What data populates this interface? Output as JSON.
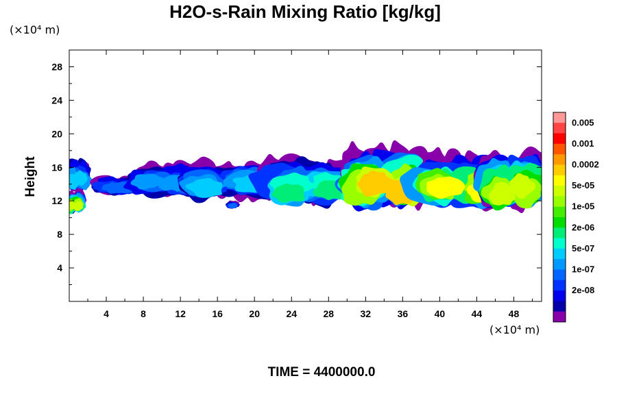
{
  "chart_data": {
    "type": "heatmap",
    "title": "H2O-s-Rain Mixing Ratio [kg/kg]",
    "ylabel": "Height",
    "x_unit_label": "(×10⁴ m)",
    "y_unit_label": "(×10⁴ m)",
    "footer": "TIME = 4400000.0",
    "xlim": [
      0,
      51
    ],
    "ylim": [
      0,
      30
    ],
    "x_ticks": [
      4,
      8,
      12,
      16,
      20,
      24,
      28,
      32,
      36,
      40,
      44,
      48
    ],
    "y_ticks": [
      4,
      8,
      12,
      16,
      20,
      24,
      28
    ],
    "legend": {
      "placement": "right",
      "labels": [
        "0.005",
        "0.001",
        "0.0002",
        "5e-05",
        "1e-05",
        "2e-06",
        "5e-07",
        "1e-07",
        "2e-08"
      ],
      "colors_top_to_bottom": [
        "#ff9999",
        "#ff4444",
        "#ff0000",
        "#ff5500",
        "#ff9900",
        "#ffcc00",
        "#ffff00",
        "#ccff00",
        "#99ff00",
        "#44ee00",
        "#00dd00",
        "#00ee77",
        "#00ffcc",
        "#00ccff",
        "#0099ff",
        "#0066ff",
        "#0033ff",
        "#0000ee",
        "#0000aa",
        "#8800aa"
      ]
    },
    "clouds": [
      {
        "x": [
          0,
          2
        ],
        "y": [
          13.2,
          16.7
        ],
        "level": 6
      },
      {
        "x": [
          0,
          1.3
        ],
        "y": [
          10.5,
          12.8
        ],
        "level": 12
      },
      {
        "x": [
          3.5,
          7.5
        ],
        "y": [
          12.8,
          14.8
        ],
        "level": 4
      },
      {
        "x": [
          7.5,
          13.5
        ],
        "y": [
          12.5,
          16.2
        ],
        "level": 5
      },
      {
        "x": [
          13.5,
          21.5
        ],
        "y": [
          12.2,
          16.4
        ],
        "level": 6
      },
      {
        "x": [
          17.3,
          18
        ],
        "y": [
          11.2,
          11.8
        ],
        "level": 4
      },
      {
        "x": [
          21.5,
          29.5
        ],
        "y": [
          11.5,
          16.6
        ],
        "level": 8
      },
      {
        "x": [
          30.5,
          38
        ],
        "y": [
          11,
          18
        ],
        "level": 14
      },
      {
        "x": [
          38,
          46
        ],
        "y": [
          11,
          17
        ],
        "level": 13
      },
      {
        "x": [
          45,
          51
        ],
        "y": [
          10.8,
          17.2
        ],
        "level": 12
      }
    ]
  }
}
